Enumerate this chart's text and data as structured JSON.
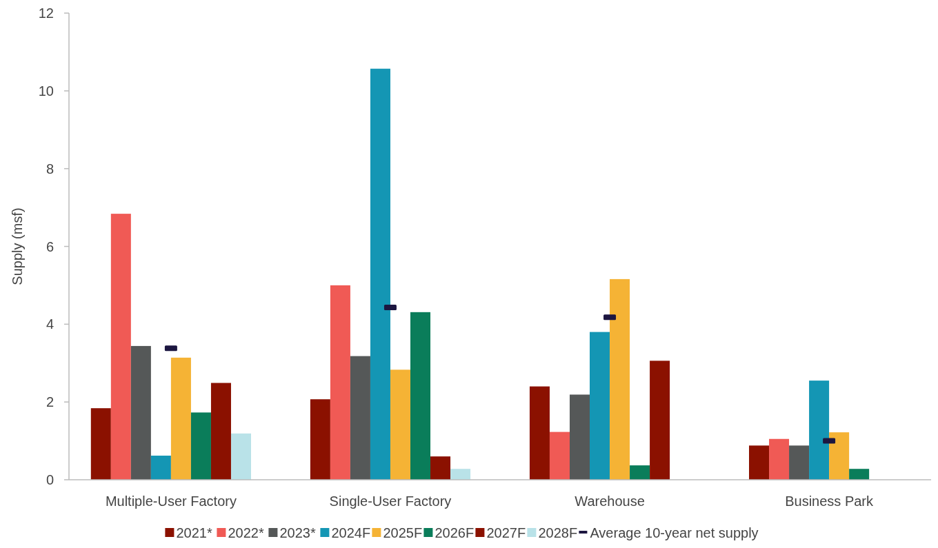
{
  "chart_data": {
    "type": "bar",
    "ylabel": "Supply (msf)",
    "categories": [
      "Multiple-User Factory",
      "Single-User Factory",
      "Warehouse",
      "Business Park"
    ],
    "series": [
      {
        "name": "2021*",
        "color": "#8b1100",
        "values": [
          1.84,
          2.07,
          2.4,
          0.88
        ]
      },
      {
        "name": "2022*",
        "color": "#f05a55",
        "values": [
          6.84,
          5.0,
          1.23,
          1.05
        ]
      },
      {
        "name": "2023*",
        "color": "#555858",
        "values": [
          3.44,
          3.18,
          2.19,
          0.88
        ]
      },
      {
        "name": "2024F",
        "color": "#1496b4",
        "values": [
          0.62,
          10.57,
          3.8,
          2.55
        ]
      },
      {
        "name": "2025F",
        "color": "#f5b335",
        "values": [
          3.14,
          2.83,
          5.16,
          1.22
        ]
      },
      {
        "name": "2026F",
        "color": "#0a7d5a",
        "values": [
          1.73,
          4.31,
          0.37,
          0.28
        ]
      },
      {
        "name": "2027F",
        "color": "#8b1100",
        "values": [
          2.49,
          0.6,
          3.06,
          null
        ]
      },
      {
        "name": "2028F",
        "color": "#b9e2e8",
        "values": [
          1.19,
          0.28,
          null,
          null
        ]
      },
      {
        "name": "Average 10-year net supply",
        "type": "scatter",
        "color": "#1c1640",
        "values": [
          3.38,
          4.43,
          4.18,
          1.0
        ]
      }
    ],
    "ylim": [
      0,
      12
    ],
    "yticks": [
      0,
      2,
      4,
      6,
      8,
      10,
      12
    ],
    "grid": false,
    "legend": "bottom"
  }
}
